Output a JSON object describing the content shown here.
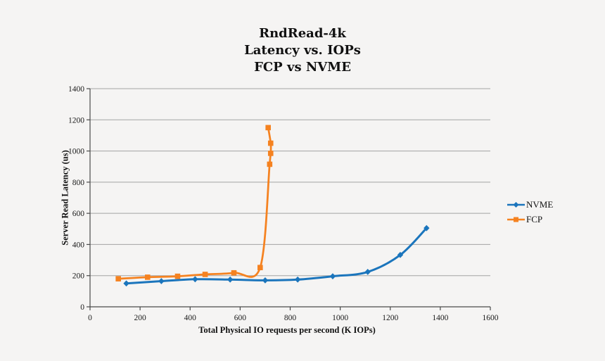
{
  "background_color": "#f5f4f3",
  "chart_data": {
    "type": "line",
    "title_lines": [
      "RndRead-4k",
      "Latency vs. IOPs",
      "FCP vs NVME"
    ],
    "xlabel": "Total Physical IO requests per second (K IOPs)",
    "ylabel": "Server Read Latency (us)",
    "xlim": [
      0,
      1600
    ],
    "ylim": [
      0,
      1400
    ],
    "xticks": [
      0,
      200,
      400,
      600,
      800,
      1000,
      1200,
      1400,
      1600
    ],
    "yticks": [
      0,
      200,
      400,
      600,
      800,
      1000,
      1200,
      1400
    ],
    "grid": "horizontal-only",
    "gridline_color": "#a3a3a3",
    "axis_color": "#4a4a4a",
    "line_style": "smoothed",
    "legend_position": "right",
    "series": [
      {
        "name": "NVME",
        "color": "#1b75bc",
        "marker": "diamond",
        "x": [
          145,
          285,
          420,
          560,
          700,
          830,
          970,
          1110,
          1240,
          1345
        ],
        "y": [
          150,
          165,
          177,
          175,
          170,
          175,
          196,
          224,
          333,
          505
        ]
      },
      {
        "name": "FCP",
        "color": "#f58220",
        "marker": "square",
        "x": [
          113,
          230,
          350,
          460,
          575,
          680,
          718,
          722,
          722,
          712
        ],
        "y": [
          180,
          190,
          196,
          208,
          218,
          252,
          915,
          985,
          1050,
          1150
        ]
      }
    ]
  }
}
